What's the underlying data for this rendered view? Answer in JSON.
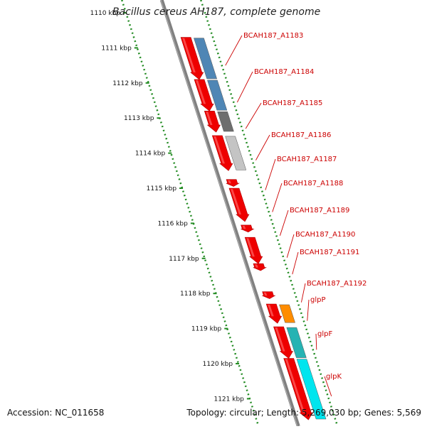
{
  "title": "Bacillus cereus AH187, complete genome",
  "accession": "Accession: NC_011658",
  "topology": "Topology: circular; Length: 5,269,030 bp; Genes: 5,569",
  "colors": {
    "feature": "#ee0000",
    "label": "#cc0000",
    "tick": "#228b22",
    "backbone": "#808080",
    "blue": "#4f86b5",
    "darkgray": "#6e6e6e",
    "lightgray": "#c4c4c4",
    "orange": "#ff8c00",
    "teal": "#26b3b3",
    "cyan": "#00e5ee"
  },
  "scale": {
    "ticks": [
      {
        "label": "1110 kbp",
        "kbp": 1110
      },
      {
        "label": "1111 kbp",
        "kbp": 1111
      },
      {
        "label": "1112 kbp",
        "kbp": 1112
      },
      {
        "label": "1113 kbp",
        "kbp": 1113
      },
      {
        "label": "1114 kbp",
        "kbp": 1114
      },
      {
        "label": "1115 kbp",
        "kbp": 1115
      },
      {
        "label": "1116 kbp",
        "kbp": 1116
      },
      {
        "label": "1117 kbp",
        "kbp": 1117
      },
      {
        "label": "1118 kbp",
        "kbp": 1118
      },
      {
        "label": "1119 kbp",
        "kbp": 1119
      },
      {
        "label": "1120 kbp",
        "kbp": 1120
      },
      {
        "label": "1121 kbp",
        "kbp": 1121
      }
    ]
  },
  "genes": [
    {
      "name": "BCAH187_A1183",
      "start": 1110.7,
      "end": 1111.9,
      "cog": "blue"
    },
    {
      "name": "BCAH187_A1184",
      "start": 1111.9,
      "end": 1112.8,
      "cog": "blue"
    },
    {
      "name": "BCAH187_A1185",
      "start": 1112.8,
      "end": 1113.4,
      "cog": "darkgray"
    },
    {
      "name": "BCAH187_A1186",
      "start": 1113.5,
      "end": 1114.5,
      "cog": "lightgray"
    },
    {
      "name": "BCAH187_A1187",
      "start": 1114.75,
      "end": 1114.95,
      "cog": "none"
    },
    {
      "name": "BCAH187_A1188",
      "start": 1115.0,
      "end": 1115.95,
      "cog": "none"
    },
    {
      "name": "BCAH187_A1189",
      "start": 1116.05,
      "end": 1116.25,
      "cog": "none"
    },
    {
      "name": "BCAH187_A1190",
      "start": 1116.4,
      "end": 1117.15,
      "cog": "none"
    },
    {
      "name": "BCAH187_A1191",
      "start": 1117.15,
      "end": 1117.35,
      "cog": "none"
    },
    {
      "name": "BCAH187_A1192",
      "start": 1117.95,
      "end": 1118.15,
      "cog": "none"
    },
    {
      "name": "glpP",
      "start": 1118.3,
      "end": 1118.85,
      "cog": "orange"
    },
    {
      "name": "glpF",
      "start": 1118.95,
      "end": 1119.85,
      "cog": "teal"
    },
    {
      "name": "glpK",
      "start": 1119.85,
      "end": 1121.6,
      "cog": "cyan"
    }
  ]
}
